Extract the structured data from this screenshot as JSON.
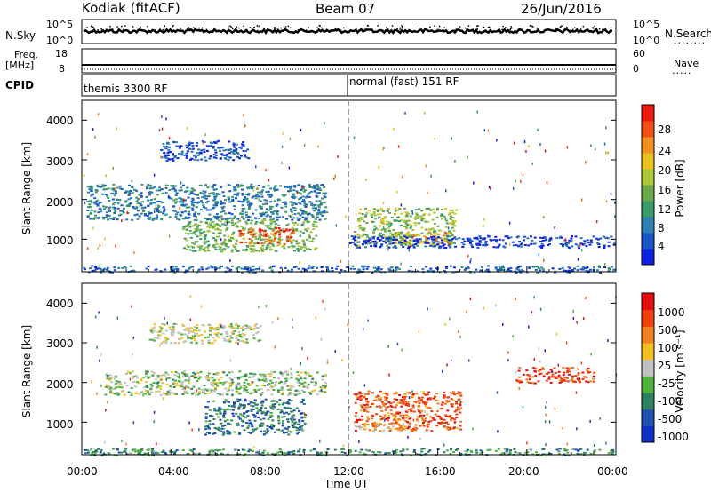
{
  "header": {
    "station": "Kodiak (fitACF)",
    "beam": "Beam 07",
    "date": "26/Jun/2016"
  },
  "nsky_panel": {
    "label": "N.Sky",
    "left_ticks": [
      "10^5",
      "10^0"
    ],
    "right_ticks": [
      "10^5",
      "10^0"
    ],
    "right_label": "N.Search",
    "right_dots": "........"
  },
  "freq_panel": {
    "label_line1": "Freq.",
    "label_line2": "[MHz]",
    "left_ticks": [
      "18",
      "8"
    ],
    "right_ticks": [
      "60",
      "0"
    ],
    "right_label": "Nave",
    "right_dots": "....."
  },
  "cpid_panel": {
    "label": "CPID",
    "mode1": "themis 3300 RF",
    "mode2": "normal (fast) 151 RF"
  },
  "x_axis": {
    "label": "Time UT",
    "ticks": [
      "00:00",
      "04:00",
      "08:00",
      "12:00",
      "16:00",
      "20:00",
      "00:00"
    ]
  },
  "chart_data": [
    {
      "type": "heatmap",
      "name": "power",
      "ylabel": "Slant Range [km]",
      "yticks": [
        "1000",
        "2000",
        "3000",
        "4000"
      ],
      "ylim": [
        180,
        4500
      ],
      "xlim": [
        0,
        24
      ],
      "colorbar_label": "Power [dB]",
      "colorbar_ticks": [
        "4",
        "8",
        "12",
        "16",
        "20",
        "24",
        "28"
      ],
      "colorbar_colors": [
        "#1020e0",
        "#1a55c8",
        "#2f7fb0",
        "#3a9a6a",
        "#6aa84a",
        "#a8c838",
        "#e8c020",
        "#f09020",
        "#f05018",
        "#e81a10"
      ],
      "regions": [
        {
          "t0": 0.2,
          "t1": 11.0,
          "r0": 1500,
          "r1": 2400,
          "level": 0.25
        },
        {
          "t0": 4.5,
          "t1": 10.5,
          "r0": 700,
          "r1": 1500,
          "level": 0.45
        },
        {
          "t0": 7.0,
          "t1": 9.5,
          "r0": 900,
          "r1": 1300,
          "level": 0.85
        },
        {
          "t0": 3.5,
          "t1": 7.5,
          "r0": 3000,
          "r1": 3500,
          "level": 0.15
        },
        {
          "t0": 12.2,
          "t1": 16.8,
          "r0": 850,
          "r1": 1800,
          "level": 0.5
        },
        {
          "t0": 14.0,
          "t1": 16.5,
          "r0": 900,
          "r1": 1200,
          "level": 0.7
        },
        {
          "t0": 12.0,
          "t1": 24.0,
          "r0": 800,
          "r1": 1100,
          "level": 0.1
        },
        {
          "t0": 0.0,
          "t1": 24.0,
          "r0": 180,
          "r1": 350,
          "level": 0.2
        }
      ]
    },
    {
      "type": "heatmap",
      "name": "velocity",
      "ylabel": "Slant Range [km]",
      "yticks": [
        "1000",
        "2000",
        "3000",
        "4000"
      ],
      "ylim": [
        180,
        4500
      ],
      "xlim": [
        0,
        24
      ],
      "colorbar_label": "Velocity [m s⁻¹]",
      "colorbar_ticks": [
        "1000",
        "500",
        "100",
        "25",
        "-25",
        "-100",
        "-500",
        "-1000"
      ],
      "colorbar_colors": [
        "#1030c8",
        "#2050b0",
        "#2f8060",
        "#50b040",
        "#c0c0c0",
        "#f0c020",
        "#f08020",
        "#f04010",
        "#e01010"
      ],
      "regions": [
        {
          "t0": 1.0,
          "t1": 11.0,
          "r0": 1700,
          "r1": 2300,
          "level": 0.45
        },
        {
          "t0": 5.5,
          "t1": 10.0,
          "r0": 700,
          "r1": 1600,
          "level": 0.25
        },
        {
          "t0": 3.0,
          "t1": 8.0,
          "r0": 3000,
          "r1": 3500,
          "level": 0.5
        },
        {
          "t0": 12.2,
          "t1": 17.0,
          "r0": 800,
          "r1": 1800,
          "level": 0.8
        },
        {
          "t0": 12.2,
          "t1": 14.5,
          "r0": 800,
          "r1": 1000,
          "level": 0.62
        },
        {
          "t0": 19.5,
          "t1": 23.0,
          "r0": 2000,
          "r1": 2400,
          "level": 0.85
        },
        {
          "t0": 0.0,
          "t1": 24.0,
          "r0": 180,
          "r1": 350,
          "level": 0.3
        }
      ]
    }
  ]
}
